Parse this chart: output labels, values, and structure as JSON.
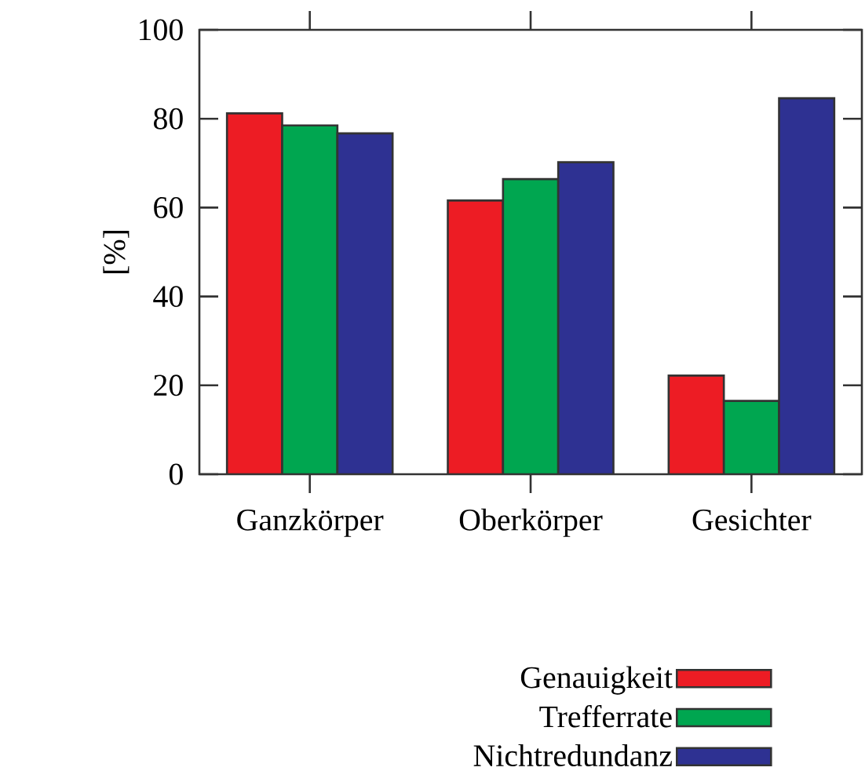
{
  "chart_data": {
    "type": "bar",
    "ylabel": "[%]",
    "categories": [
      "Ganzkörper",
      "Oberkörper",
      "Gesichter"
    ],
    "series": [
      {
        "name": "Genauigkeit",
        "color": "#ed1c24",
        "values": [
          81.2,
          61.6,
          22.2
        ]
      },
      {
        "name": "Trefferrate",
        "color": "#00a650",
        "values": [
          78.5,
          66.4,
          16.5
        ]
      },
      {
        "name": "Nichtredundanz",
        "color": "#2e3192",
        "values": [
          76.7,
          70.2,
          84.6
        ]
      }
    ],
    "ylim": [
      0,
      100
    ],
    "yticks": [
      0,
      20,
      40,
      60,
      80,
      100
    ],
    "legend": "bottom"
  }
}
